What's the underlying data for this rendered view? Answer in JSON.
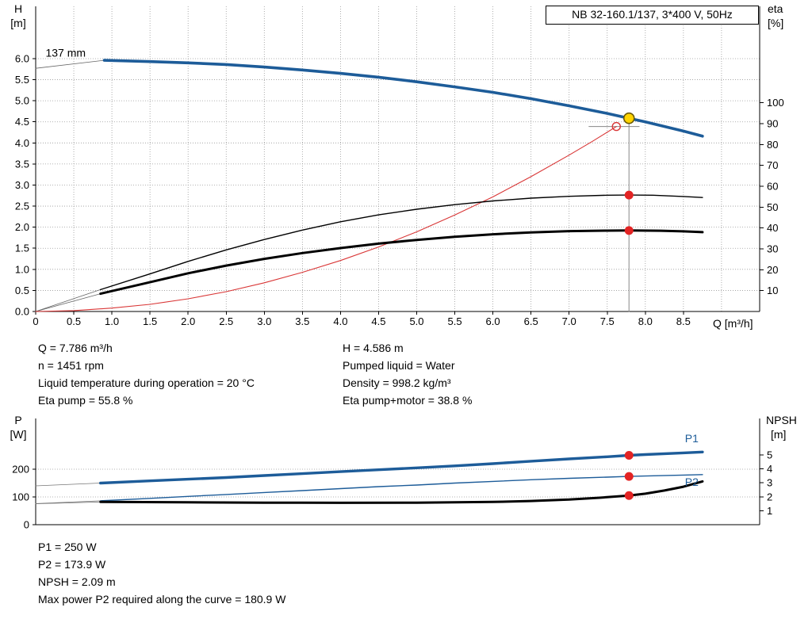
{
  "title_box": "NB 32-160.1/137, 3*400 V, 50Hz",
  "colors": {
    "curve_blue": "#1d5c99",
    "curve_black": "#000000",
    "system_red": "#d93636",
    "marker_red": "#e32424",
    "marker_yellow": "#ffd400",
    "grid": "#9a9a9a"
  },
  "info_top_left": [
    "Q = 7.786 m³/h",
    "n = 1451 rpm",
    "Liquid temperature during operation = 20 °C",
    "Eta pump = 55.8 %"
  ],
  "info_top_right": [
    "H = 4.586 m",
    "Pumped liquid = Water",
    "Density = 998.2 kg/m³",
    "Eta pump+motor = 38.8 %"
  ],
  "info_bottom": [
    "P1 = 250 W",
    "P2 = 173.9 W",
    "NPSH = 2.09 m",
    "Max power P2 required along the curve = 180.9 W"
  ],
  "chart_data": [
    {
      "type": "line",
      "name": "pump-performance-QH-eta",
      "title": "NB 32-160.1/137, 3*400 V, 50Hz",
      "impeller_label": "137 mm",
      "x_axis": {
        "label": "Q [m³/h]",
        "min": 0,
        "max": 9.5,
        "tick_values": [
          0,
          0.5,
          1,
          1.5,
          2,
          2.5,
          3,
          3.5,
          4,
          4.5,
          5,
          5.5,
          6,
          6.5,
          7,
          7.5,
          8,
          8.5
        ],
        "tick_labels": [
          "0",
          "0.5",
          "1.0",
          "1.5",
          "2.0",
          "2.5",
          "3.0",
          "3.5",
          "4.0",
          "4.5",
          "5.0",
          "5.5",
          "6.0",
          "6.5",
          "7.0",
          "7.5",
          "8.0",
          "8.5"
        ],
        "grid_values": [
          0.5,
          1,
          1.5,
          2,
          2.5,
          3,
          3.5,
          4,
          4.5,
          5,
          5.5,
          6,
          6.5,
          7,
          7.5,
          8,
          8.5,
          9
        ]
      },
      "left_axis": {
        "title": "H",
        "unit": "[m]",
        "min": 0,
        "max": 7.24,
        "tick_values": [
          0,
          0.5,
          1,
          1.5,
          2,
          2.5,
          3,
          3.5,
          4,
          4.5,
          5,
          5.5,
          6
        ],
        "tick_labels": [
          "0.0",
          "0.5",
          "1.0",
          "1.5",
          "2.0",
          "2.5",
          "3.0",
          "3.5",
          "4.0",
          "4.5",
          "5.0",
          "5.5",
          "6.0"
        ],
        "grid_values": [
          0.5,
          1,
          1.5,
          2,
          2.5,
          3,
          3.5,
          4,
          4.5,
          5,
          5.5,
          6
        ]
      },
      "right_axis": {
        "title": "eta",
        "unit": "[%]",
        "min": 0,
        "max": 146,
        "tick_values": [
          10,
          20,
          30,
          40,
          50,
          60,
          70,
          80,
          90,
          100
        ],
        "tick_labels": [
          "10",
          "20",
          "30",
          "40",
          "50",
          "60",
          "70",
          "80",
          "90",
          "100"
        ]
      },
      "series": [
        {
          "name": "system-curve",
          "axis": "left",
          "color": "#d93636",
          "width": 1.1,
          "points": [
            [
              0,
              0
            ],
            [
              0.5,
              0.02
            ],
            [
              1,
              0.08
            ],
            [
              1.5,
              0.17
            ],
            [
              2,
              0.3
            ],
            [
              2.5,
              0.47
            ],
            [
              3,
              0.68
            ],
            [
              3.5,
              0.93
            ],
            [
              4,
              1.21
            ],
            [
              4.5,
              1.53
            ],
            [
              5,
              1.89
            ],
            [
              5.5,
              2.29
            ],
            [
              6,
              2.72
            ],
            [
              6.5,
              3.2
            ],
            [
              7,
              3.71
            ],
            [
              7.3,
              4.03
            ],
            [
              7.62,
              4.39
            ]
          ]
        },
        {
          "name": "eta-pump",
          "axis": "right",
          "color": "#000000",
          "width": 1.4,
          "points": [
            [
              0.85,
              10.5
            ],
            [
              1.5,
              18
            ],
            [
              2,
              24
            ],
            [
              2.5,
              29.5
            ],
            [
              3,
              34.5
            ],
            [
              3.5,
              39
            ],
            [
              4,
              43
            ],
            [
              4.5,
              46.3
            ],
            [
              5,
              49
            ],
            [
              5.5,
              51.2
            ],
            [
              6,
              53
            ],
            [
              6.5,
              54.3
            ],
            [
              7,
              55.2
            ],
            [
              7.5,
              55.7
            ],
            [
              7.786,
              55.8
            ],
            [
              8.1,
              55.7
            ],
            [
              8.5,
              55.1
            ],
            [
              8.75,
              54.6
            ]
          ]
        },
        {
          "name": "eta-pump-plus-motor",
          "axis": "right",
          "color": "#000000",
          "width": 3,
          "points": [
            [
              0.85,
              8.5
            ],
            [
              1.5,
              14
            ],
            [
              2,
              18.3
            ],
            [
              2.5,
              22
            ],
            [
              3,
              25.2
            ],
            [
              3.5,
              28
            ],
            [
              4,
              30.4
            ],
            [
              4.5,
              32.5
            ],
            [
              5,
              34.3
            ],
            [
              5.5,
              35.8
            ],
            [
              6,
              37
            ],
            [
              6.5,
              37.9
            ],
            [
              7,
              38.5
            ],
            [
              7.5,
              38.75
            ],
            [
              7.786,
              38.8
            ],
            [
              8.2,
              38.7
            ],
            [
              8.5,
              38.4
            ],
            [
              8.75,
              38
            ]
          ]
        },
        {
          "name": "H-curve-137mm",
          "axis": "left",
          "color": "#1d5c99",
          "width": 3.6,
          "points": [
            [
              0.9,
              5.96
            ],
            [
              1.5,
              5.93
            ],
            [
              2,
              5.9
            ],
            [
              2.5,
              5.86
            ],
            [
              3,
              5.8
            ],
            [
              3.5,
              5.73
            ],
            [
              4,
              5.65
            ],
            [
              4.5,
              5.56
            ],
            [
              5,
              5.45
            ],
            [
              5.5,
              5.33
            ],
            [
              6,
              5.2
            ],
            [
              6.5,
              5.05
            ],
            [
              7,
              4.88
            ],
            [
              7.5,
              4.7
            ],
            [
              7.786,
              4.586
            ],
            [
              8,
              4.5
            ],
            [
              8.5,
              4.28
            ],
            [
              8.75,
              4.16
            ]
          ]
        }
      ],
      "aux_lines": [
        {
          "name": "duty-vertical-line",
          "axis": "left",
          "color": "#888888",
          "width": 1,
          "points": [
            [
              7.786,
              0
            ],
            [
              7.786,
              4.586
            ]
          ]
        },
        {
          "name": "duty-horizontal-line",
          "axis": "left",
          "color": "#888888",
          "width": 1,
          "points": [
            [
              7.26,
              4.39
            ],
            [
              7.92,
              4.39
            ]
          ]
        },
        {
          "name": "impeller-pointer-line",
          "axis": "left",
          "color": "#666666",
          "width": 0.8,
          "points": [
            [
              0,
              5.77
            ],
            [
              0.9,
              5.96
            ]
          ]
        },
        {
          "name": "eta-pump-extrapolation",
          "axis": "right",
          "color": "#666666",
          "width": 0.8,
          "points": [
            [
              0,
              0
            ],
            [
              0.85,
              10.5
            ]
          ]
        },
        {
          "name": "eta-motor-extrapolation",
          "axis": "right",
          "color": "#666666",
          "width": 0.8,
          "points": [
            [
              0,
              0
            ],
            [
              0.85,
              8.5
            ]
          ]
        }
      ],
      "markers": [
        {
          "name": "requested-duty-ring",
          "axis": "left",
          "q": 7.62,
          "v": 4.39,
          "r": 5,
          "fill": "none",
          "stroke": "#d93636",
          "stroke_width": 1.4
        },
        {
          "name": "eta-pump-duty-dot",
          "axis": "right",
          "q": 7.786,
          "v": 55.8,
          "r": 5.5,
          "fill": "#e32424"
        },
        {
          "name": "eta-motor-duty-dot",
          "axis": "right",
          "q": 7.786,
          "v": 38.8,
          "r": 5.5,
          "fill": "#e32424"
        },
        {
          "name": "duty-point-dot",
          "axis": "left",
          "q": 7.786,
          "v": 4.586,
          "r": 6.5,
          "fill": "#ffd400",
          "stroke": "#6b5900",
          "stroke_width": 1.6
        }
      ],
      "labels": [
        {
          "text": "137 mm",
          "axis": "left",
          "q": 0.13,
          "v": 6.05,
          "color": "#000000",
          "size": 14
        }
      ],
      "duty_point": {
        "Q_m3h": 7.786,
        "H_m": 4.586,
        "eta_pump_pct": 55.8,
        "eta_pump_motor_pct": 38.8
      }
    },
    {
      "type": "line",
      "name": "power-npsh",
      "x_axis": {
        "label": "",
        "min": 0,
        "max": 9.5,
        "tick_values": [],
        "tick_labels": [],
        "grid_values": []
      },
      "left_axis": {
        "title": "P",
        "unit": "[W]",
        "min": 0,
        "max": 383,
        "tick_values": [
          0,
          100,
          200
        ],
        "tick_labels": [
          "0",
          "100",
          "200"
        ],
        "grid_values": [
          100,
          200
        ]
      },
      "right_axis": {
        "title": "NPSH",
        "unit": "[m]",
        "min": 0,
        "max": 7.6,
        "tick_values": [
          1,
          2,
          3,
          4,
          5
        ],
        "tick_labels": [
          "1",
          "2",
          "3",
          "4",
          "5"
        ]
      },
      "series": [
        {
          "name": "P2-curve",
          "axis": "left",
          "color": "#1d5c99",
          "width": 1.4,
          "points": [
            [
              0.85,
              86
            ],
            [
              1.5,
              95
            ],
            [
              2,
              102
            ],
            [
              2.5,
              109
            ],
            [
              3,
              116
            ],
            [
              3.5,
              123
            ],
            [
              4,
              130
            ],
            [
              4.5,
              137
            ],
            [
              5,
              143
            ],
            [
              5.5,
              150
            ],
            [
              6,
              156
            ],
            [
              6.5,
              162
            ],
            [
              7,
              167
            ],
            [
              7.5,
              171.5
            ],
            [
              7.786,
              173.9
            ],
            [
              8,
              175.5
            ],
            [
              8.5,
              179
            ],
            [
              8.75,
              180.5
            ]
          ]
        },
        {
          "name": "NPSH-curve",
          "axis": "right",
          "color": "#000000",
          "width": 3,
          "points": [
            [
              0.85,
              1.63
            ],
            [
              2,
              1.6
            ],
            [
              3,
              1.58
            ],
            [
              4,
              1.57
            ],
            [
              5,
              1.58
            ],
            [
              5.5,
              1.6
            ],
            [
              6,
              1.63
            ],
            [
              6.5,
              1.7
            ],
            [
              7,
              1.8
            ],
            [
              7.4,
              1.93
            ],
            [
              7.786,
              2.09
            ],
            [
              8,
              2.22
            ],
            [
              8.25,
              2.45
            ],
            [
              8.5,
              2.72
            ],
            [
              8.75,
              3.1
            ]
          ]
        },
        {
          "name": "P1-curve",
          "axis": "left",
          "color": "#1d5c99",
          "width": 3.4,
          "points": [
            [
              0.85,
              150
            ],
            [
              1.5,
              158
            ],
            [
              2,
              164
            ],
            [
              2.5,
              170
            ],
            [
              3,
              177
            ],
            [
              3.5,
              184
            ],
            [
              4,
              191
            ],
            [
              4.5,
              198
            ],
            [
              5,
              205
            ],
            [
              5.5,
              212
            ],
            [
              6,
              220
            ],
            [
              6.5,
              229
            ],
            [
              7,
              237
            ],
            [
              7.5,
              245
            ],
            [
              7.786,
              250
            ],
            [
              8,
              253
            ],
            [
              8.5,
              259
            ],
            [
              8.75,
              262
            ]
          ]
        }
      ],
      "aux_lines": [
        {
          "name": "P1-extrapolation",
          "axis": "left",
          "color": "#777777",
          "width": 0.8,
          "points": [
            [
              0,
              140
            ],
            [
              0.85,
              150
            ]
          ]
        },
        {
          "name": "P2-extrapolation",
          "axis": "left",
          "color": "#777777",
          "width": 0.8,
          "points": [
            [
              0,
              76
            ],
            [
              0.85,
              86
            ]
          ]
        },
        {
          "name": "NPSH-extrapolation",
          "axis": "right",
          "color": "#777777",
          "width": 0.8,
          "points": [
            [
              0,
              1.5
            ],
            [
              0.85,
              1.63
            ]
          ]
        }
      ],
      "markers": [
        {
          "name": "P1-duty-dot",
          "axis": "left",
          "q": 7.786,
          "v": 250,
          "r": 5.5,
          "fill": "#e32424"
        },
        {
          "name": "P2-duty-dot",
          "axis": "left",
          "q": 7.786,
          "v": 173.9,
          "r": 5.5,
          "fill": "#e32424"
        },
        {
          "name": "NPSH-duty-dot",
          "axis": "right",
          "q": 7.786,
          "v": 2.09,
          "r": 5.5,
          "fill": "#e32424"
        }
      ],
      "labels": [
        {
          "text": "P1",
          "axis": "left",
          "q": 8.52,
          "v": 297,
          "color": "#1d5c99",
          "size": 14
        },
        {
          "text": "P2",
          "axis": "left",
          "q": 8.52,
          "v": 140,
          "color": "#1d5c99",
          "size": 14
        }
      ],
      "duty_point": {
        "Q_m3h": 7.786,
        "P1_W": 250,
        "P2_W": 173.9,
        "NPSH_m": 2.09,
        "max_P2_along_curve_W": 180.9
      }
    }
  ]
}
